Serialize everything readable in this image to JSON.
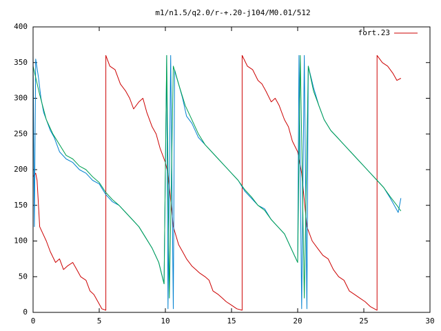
{
  "chart_data": {
    "type": "line",
    "title": "m1/n1.5/q2.0/r-+.20-j104/M0.01/512",
    "xlabel": "",
    "ylabel": "",
    "xlim": [
      0,
      30
    ],
    "ylim": [
      0,
      400
    ],
    "xticks": [
      0,
      5,
      10,
      15,
      20,
      25,
      30
    ],
    "yticks": [
      0,
      50,
      100,
      150,
      200,
      250,
      300,
      350,
      400
    ],
    "xtick_labels": [
      "0",
      "5",
      "10",
      "15",
      "20",
      "25",
      "30"
    ],
    "ytick_labels": [
      "0",
      "50",
      "100",
      "150",
      "200",
      "250",
      "300",
      "350",
      "400"
    ],
    "grid": false,
    "legend_position": "top-right",
    "series": [
      {
        "name": "fort.23",
        "color": "#cc0000",
        "in_legend": true,
        "points": [
          [
            0.0,
            190
          ],
          [
            0.2,
            195
          ],
          [
            0.3,
            185
          ],
          [
            0.5,
            120
          ],
          [
            1.0,
            100
          ],
          [
            1.3,
            85
          ],
          [
            1.7,
            70
          ],
          [
            2.0,
            75
          ],
          [
            2.3,
            60
          ],
          [
            2.6,
            65
          ],
          [
            3.0,
            70
          ],
          [
            3.3,
            60
          ],
          [
            3.6,
            50
          ],
          [
            4.0,
            45
          ],
          [
            4.3,
            30
          ],
          [
            4.6,
            25
          ],
          [
            4.9,
            15
          ],
          [
            5.2,
            5
          ],
          [
            5.5,
            3
          ],
          [
            5.5,
            360
          ],
          [
            5.8,
            345
          ],
          [
            6.2,
            340
          ],
          [
            6.6,
            320
          ],
          [
            7.0,
            310
          ],
          [
            7.3,
            300
          ],
          [
            7.6,
            285
          ],
          [
            8.0,
            295
          ],
          [
            8.3,
            300
          ],
          [
            8.6,
            280
          ],
          [
            9.0,
            260
          ],
          [
            9.3,
            250
          ],
          [
            9.6,
            230
          ],
          [
            10.0,
            210
          ],
          [
            10.2,
            195
          ],
          [
            10.6,
            120
          ],
          [
            11.0,
            95
          ],
          [
            11.3,
            85
          ],
          [
            11.6,
            75
          ],
          [
            12.0,
            65
          ],
          [
            12.3,
            60
          ],
          [
            12.6,
            55
          ],
          [
            13.0,
            50
          ],
          [
            13.3,
            45
          ],
          [
            13.6,
            30
          ],
          [
            14.0,
            25
          ],
          [
            14.3,
            20
          ],
          [
            14.6,
            15
          ],
          [
            15.0,
            10
          ],
          [
            15.4,
            5
          ],
          [
            15.8,
            3
          ],
          [
            15.8,
            360
          ],
          [
            16.2,
            345
          ],
          [
            16.6,
            340
          ],
          [
            17.0,
            325
          ],
          [
            17.3,
            320
          ],
          [
            17.6,
            310
          ],
          [
            18.0,
            295
          ],
          [
            18.3,
            300
          ],
          [
            18.6,
            290
          ],
          [
            19.0,
            270
          ],
          [
            19.3,
            260
          ],
          [
            19.6,
            240
          ],
          [
            20.0,
            225
          ],
          [
            20.3,
            195
          ],
          [
            20.7,
            120
          ],
          [
            21.1,
            100
          ],
          [
            21.5,
            90
          ],
          [
            21.9,
            80
          ],
          [
            22.3,
            75
          ],
          [
            22.7,
            60
          ],
          [
            23.1,
            50
          ],
          [
            23.5,
            45
          ],
          [
            23.9,
            30
          ],
          [
            24.3,
            25
          ],
          [
            24.7,
            20
          ],
          [
            25.1,
            15
          ],
          [
            25.5,
            8
          ],
          [
            26.0,
            3
          ],
          [
            26.0,
            360
          ],
          [
            26.4,
            350
          ],
          [
            26.8,
            345
          ],
          [
            27.2,
            335
          ],
          [
            27.5,
            325
          ],
          [
            27.8,
            328
          ]
        ]
      },
      {
        "name": "",
        "color": "#0080d0",
        "in_legend": false,
        "points": [
          [
            0.0,
            360
          ],
          [
            0.1,
            120
          ],
          [
            0.2,
            355
          ],
          [
            0.4,
            330
          ],
          [
            0.6,
            300
          ],
          [
            0.8,
            280
          ],
          [
            1.0,
            270
          ],
          [
            1.3,
            255
          ],
          [
            1.6,
            245
          ],
          [
            2.0,
            225
          ],
          [
            2.5,
            215
          ],
          [
            3.0,
            210
          ],
          [
            3.5,
            200
          ],
          [
            4.0,
            195
          ],
          [
            4.5,
            185
          ],
          [
            5.0,
            180
          ],
          [
            5.5,
            165
          ],
          [
            6.0,
            155
          ],
          [
            6.5,
            150
          ],
          [
            7.0,
            140
          ],
          [
            7.5,
            130
          ],
          [
            8.0,
            120
          ],
          [
            8.5,
            105
          ],
          [
            9.0,
            90
          ],
          [
            9.5,
            70
          ],
          [
            9.9,
            40
          ],
          [
            10.1,
            360
          ],
          [
            10.2,
            5
          ],
          [
            10.4,
            360
          ],
          [
            10.6,
            5
          ],
          [
            10.7,
            340
          ],
          [
            11.0,
            320
          ],
          [
            11.3,
            300
          ],
          [
            11.6,
            275
          ],
          [
            12.0,
            265
          ],
          [
            12.5,
            245
          ],
          [
            13.0,
            235
          ],
          [
            13.5,
            225
          ],
          [
            14.0,
            215
          ],
          [
            14.5,
            205
          ],
          [
            15.0,
            195
          ],
          [
            15.5,
            185
          ],
          [
            16.0,
            170
          ],
          [
            16.5,
            160
          ],
          [
            17.0,
            150
          ],
          [
            17.5,
            145
          ],
          [
            18.0,
            130
          ],
          [
            18.5,
            120
          ],
          [
            19.0,
            110
          ],
          [
            19.5,
            90
          ],
          [
            20.0,
            70
          ],
          [
            20.1,
            360
          ],
          [
            20.3,
            5
          ],
          [
            20.5,
            360
          ],
          [
            20.7,
            5
          ],
          [
            20.8,
            345
          ],
          [
            21.2,
            315
          ],
          [
            21.6,
            290
          ],
          [
            22.0,
            270
          ],
          [
            22.5,
            255
          ],
          [
            23.0,
            245
          ],
          [
            23.5,
            235
          ],
          [
            24.0,
            225
          ],
          [
            24.5,
            215
          ],
          [
            25.0,
            205
          ],
          [
            25.5,
            195
          ],
          [
            26.0,
            185
          ],
          [
            26.5,
            175
          ],
          [
            27.0,
            160
          ],
          [
            27.3,
            150
          ],
          [
            27.6,
            140
          ],
          [
            27.8,
            160
          ]
        ]
      },
      {
        "name": "",
        "color": "#00a050",
        "in_legend": false,
        "points": [
          [
            0.0,
            345
          ],
          [
            0.5,
            305
          ],
          [
            1.0,
            270
          ],
          [
            1.5,
            250
          ],
          [
            2.0,
            235
          ],
          [
            2.5,
            220
          ],
          [
            3.0,
            215
          ],
          [
            3.5,
            205
          ],
          [
            4.0,
            200
          ],
          [
            4.5,
            190
          ],
          [
            5.0,
            182
          ],
          [
            5.5,
            168
          ],
          [
            6.0,
            158
          ],
          [
            6.5,
            150
          ],
          [
            7.0,
            140
          ],
          [
            7.5,
            130
          ],
          [
            8.0,
            120
          ],
          [
            8.5,
            105
          ],
          [
            9.0,
            90
          ],
          [
            9.5,
            70
          ],
          [
            9.9,
            40
          ],
          [
            10.1,
            360
          ],
          [
            10.3,
            20
          ],
          [
            10.6,
            345
          ],
          [
            11.0,
            320
          ],
          [
            11.5,
            290
          ],
          [
            12.0,
            270
          ],
          [
            12.5,
            250
          ],
          [
            13.0,
            235
          ],
          [
            13.5,
            225
          ],
          [
            14.0,
            215
          ],
          [
            14.5,
            205
          ],
          [
            15.0,
            195
          ],
          [
            15.5,
            185
          ],
          [
            16.0,
            172
          ],
          [
            16.5,
            162
          ],
          [
            17.0,
            150
          ],
          [
            17.5,
            143
          ],
          [
            18.0,
            130
          ],
          [
            18.5,
            120
          ],
          [
            19.0,
            110
          ],
          [
            19.5,
            90
          ],
          [
            20.0,
            70
          ],
          [
            20.2,
            360
          ],
          [
            20.5,
            20
          ],
          [
            20.8,
            345
          ],
          [
            21.2,
            310
          ],
          [
            21.6,
            290
          ],
          [
            22.0,
            270
          ],
          [
            22.5,
            255
          ],
          [
            23.0,
            245
          ],
          [
            23.5,
            235
          ],
          [
            24.0,
            225
          ],
          [
            24.5,
            215
          ],
          [
            25.0,
            205
          ],
          [
            25.5,
            195
          ],
          [
            26.0,
            185
          ],
          [
            26.5,
            175
          ],
          [
            27.0,
            162
          ],
          [
            27.5,
            150
          ],
          [
            27.8,
            142
          ]
        ]
      }
    ]
  }
}
